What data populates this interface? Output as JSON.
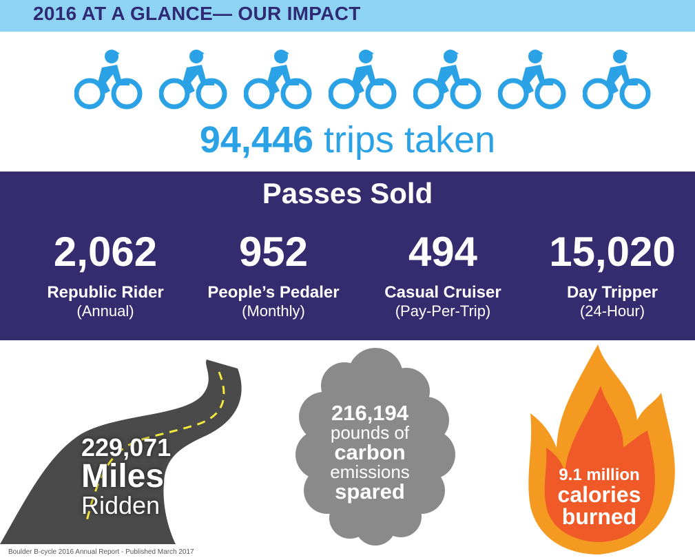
{
  "header": {
    "title": "2016 AT A GLANCE— OUR IMPACT"
  },
  "trips": {
    "number": "94,446",
    "label": "trips taken",
    "icon": "cyclist-icon",
    "icon_count": 7,
    "color": "#2ba2e5"
  },
  "passes": {
    "title": "Passes Sold",
    "items": [
      {
        "count": "2,062",
        "name": "Republic Rider",
        "sub": "(Annual)"
      },
      {
        "count": "952",
        "name": "People’s Pedaler",
        "sub": "(Monthly)"
      },
      {
        "count": "494",
        "name": "Casual Cruiser",
        "sub": "(Pay-Per-Trip)"
      },
      {
        "count": "15,020",
        "name": "Day Tripper",
        "sub": "(24-Hour)"
      }
    ]
  },
  "miles": {
    "number": "229,071",
    "word": "Miles",
    "word2": "Ridden",
    "icon": "road-icon"
  },
  "carbon": {
    "number": "216,194",
    "line1": "pounds of",
    "line2": "carbon",
    "line3": "emissions",
    "line4": "spared",
    "icon": "cloud-icon"
  },
  "calories": {
    "line1": "9.1 million",
    "line2": "calories",
    "line3": "burned",
    "icon": "flame-icon"
  },
  "footer": {
    "text": "Boulder B-cycle 2016 Annual Report - Published March 2017"
  },
  "colors": {
    "header_bg": "#8fd3f4",
    "header_text": "#2e2a73",
    "band": "#352c70",
    "road": "#4a4a4a",
    "cloud": "#8a8a8a",
    "flame_outer": "#f59a20",
    "flame_inner": "#ef5a28"
  }
}
